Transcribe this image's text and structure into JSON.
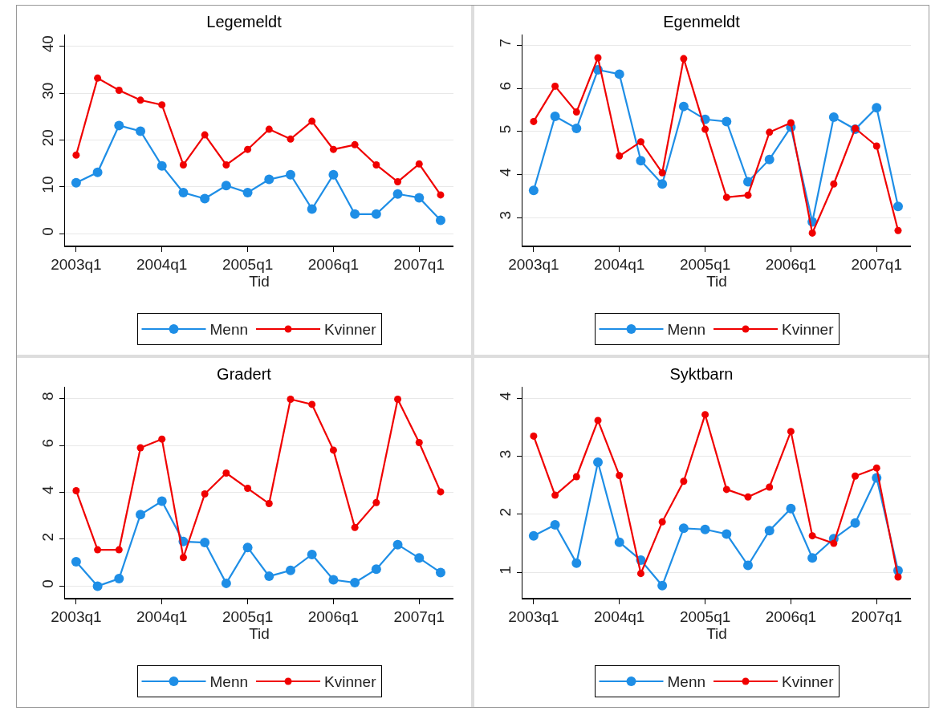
{
  "chart_data": [
    {
      "type": "line",
      "title": "Legemeldt",
      "xlabel": "Tid",
      "grid": "y",
      "legend": "bottom",
      "marker": "circle",
      "line_style": "solid",
      "categories": [
        "2003q1",
        null,
        null,
        null,
        "2004q1",
        null,
        null,
        null,
        "2005q1",
        null,
        null,
        null,
        "2006q1",
        null,
        null,
        null,
        "2007q1",
        null
      ],
      "ylim": [
        -2.5,
        42.5
      ],
      "yticks": [
        0,
        10,
        20,
        30,
        40
      ],
      "series": [
        {
          "name": "Menn",
          "color": "#1e8ee6",
          "values": [
            10.9,
            13.1,
            23.1,
            21.9,
            14.5,
            8.8,
            7.5,
            10.3,
            8.8,
            11.6,
            12.6,
            5.3,
            12.6,
            4.2,
            4.2,
            8.5,
            7.7,
            2.9
          ]
        },
        {
          "name": "Kvinner",
          "color": "#f00000",
          "values": [
            16.8,
            33.2,
            30.6,
            28.5,
            27.5,
            14.7,
            21.1,
            14.7,
            18.0,
            22.3,
            20.2,
            24.0,
            18.0,
            19.0,
            14.7,
            11.1,
            14.9,
            8.3
          ]
        }
      ]
    },
    {
      "type": "line",
      "title": "Egenmeldt",
      "xlabel": "Tid",
      "grid": "y",
      "legend": "bottom",
      "marker": "circle",
      "line_style": "solid",
      "categories": [
        "2003q1",
        null,
        null,
        null,
        "2004q1",
        null,
        null,
        null,
        "2005q1",
        null,
        null,
        null,
        "2006q1",
        null,
        null,
        null,
        "2007q1",
        null
      ],
      "ylim": [
        2.35,
        7.25
      ],
      "yticks": [
        3,
        4,
        5,
        6,
        7
      ],
      "series": [
        {
          "name": "Menn",
          "color": "#1e8ee6",
          "values": [
            3.63,
            5.35,
            5.07,
            6.43,
            6.33,
            4.32,
            3.78,
            5.58,
            5.28,
            5.23,
            3.83,
            4.35,
            5.1,
            2.9,
            5.33,
            5.05,
            5.55,
            3.26
          ]
        },
        {
          "name": "Kvinner",
          "color": "#f00000",
          "values": [
            5.23,
            6.05,
            5.45,
            6.71,
            4.43,
            4.76,
            4.04,
            6.69,
            5.05,
            3.47,
            3.52,
            4.98,
            5.2,
            2.64,
            3.78,
            5.07,
            4.66,
            2.7
          ]
        }
      ]
    },
    {
      "type": "line",
      "title": "Gradert",
      "xlabel": "Tid",
      "grid": "y",
      "legend": "bottom",
      "marker": "circle",
      "line_style": "solid",
      "categories": [
        "2003q1",
        null,
        null,
        null,
        "2004q1",
        null,
        null,
        null,
        "2005q1",
        null,
        null,
        null,
        "2006q1",
        null,
        null,
        null,
        "2007q1",
        null
      ],
      "ylim": [
        -0.5,
        8.5
      ],
      "yticks": [
        0,
        2,
        4,
        6,
        8
      ],
      "series": [
        {
          "name": "Menn",
          "color": "#1e8ee6",
          "values": [
            1.04,
            0.0,
            0.32,
            3.05,
            3.62,
            1.9,
            1.86,
            0.12,
            1.65,
            0.42,
            0.67,
            1.35,
            0.27,
            0.15,
            0.72,
            1.77,
            1.2,
            0.58
          ]
        },
        {
          "name": "Kvinner",
          "color": "#f00000",
          "values": [
            4.07,
            1.55,
            1.55,
            5.9,
            6.27,
            1.22,
            3.93,
            4.82,
            4.17,
            3.52,
            7.97,
            7.75,
            5.8,
            2.5,
            3.56,
            7.97,
            6.12,
            4.02
          ]
        }
      ]
    },
    {
      "type": "line",
      "title": "Syktbarn",
      "xlabel": "Tid",
      "grid": "y",
      "legend": "bottom",
      "marker": "circle",
      "line_style": "solid",
      "categories": [
        "2003q1",
        null,
        null,
        null,
        "2004q1",
        null,
        null,
        null,
        "2005q1",
        null,
        null,
        null,
        "2006q1",
        null,
        null,
        null,
        "2007q1",
        null
      ],
      "ylim": [
        0.56,
        4.2
      ],
      "yticks": [
        1,
        2,
        3,
        4
      ],
      "series": [
        {
          "name": "Menn",
          "color": "#1e8ee6",
          "values": [
            1.63,
            1.82,
            1.16,
            2.9,
            1.52,
            1.21,
            0.77,
            1.76,
            1.74,
            1.66,
            1.12,
            1.72,
            2.1,
            1.25,
            1.58,
            1.85,
            2.63,
            1.03
          ]
        },
        {
          "name": "Kvinner",
          "color": "#f00000",
          "values": [
            3.35,
            2.33,
            2.65,
            3.62,
            2.67,
            0.98,
            1.87,
            2.57,
            3.72,
            2.43,
            2.3,
            2.47,
            3.43,
            1.63,
            1.5,
            2.66,
            2.8,
            0.92
          ]
        }
      ]
    }
  ]
}
